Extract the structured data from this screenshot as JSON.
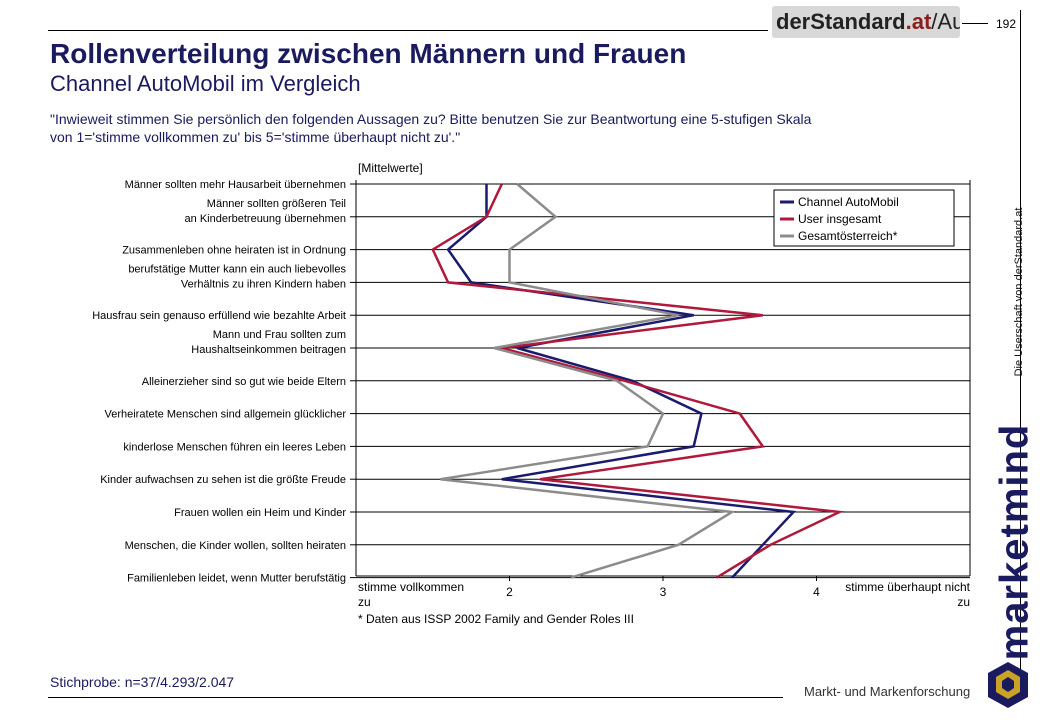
{
  "header": {
    "logo_part1": "derStandard",
    "logo_part2": ".at",
    "logo_part3": "/AutoMobil",
    "page_number": "192",
    "title": "Rollenverteilung zwischen Männern und Frauen",
    "subtitle": "Channel AutoMobil im Vergleich",
    "question_line1": "\"Inwieweit stimmen Sie persönlich den folgenden Aussagen zu? Bitte benutzen Sie zur Beantwortung eine 5-stufigen Skala",
    "question_line2": "von 1='stimme vollkommen zu' bis 5='stimme überhaupt nicht zu'.\""
  },
  "sidebar": {
    "ownership": "Die Userschaft von derStandard.at",
    "brand": "marketmind",
    "tagline": "Markt- und Markenforschung"
  },
  "footer": {
    "sample": "Stichprobe: n=37/4.293/2.047"
  },
  "colors": {
    "title": "#1a1a5e",
    "channel": "#1a1a6e",
    "user": "#b0183c",
    "gesamt": "#8c8c8c",
    "grid": "#000000"
  },
  "chart_data": {
    "type": "line",
    "orientation": "horizontal",
    "value_axis_title": "[Mittelwerte]",
    "x_min_label": "stimme vollkommen zu",
    "x_max_label": "stimme überhaupt nicht zu",
    "footnote": "* Daten aus ISSP 2002 Family and Gender Roles III",
    "xlim": [
      1.0,
      5.0
    ],
    "ticks": [
      2,
      3,
      4
    ],
    "grid": true,
    "legend_position": "top-right",
    "categories": [
      [
        "Männer sollten mehr Hausarbeit übernehmen"
      ],
      [
        "Männer sollten größeren Teil",
        "an Kinderbetreuung übernehmen"
      ],
      [
        "Zusammenleben ohne heiraten ist in Ordnung"
      ],
      [
        "berufstätige Mutter kann ein auch liebevolles",
        "Verhältnis zu ihren Kindern haben"
      ],
      [
        "Hausfrau sein genauso erfüllend wie bezahlte Arbeit"
      ],
      [
        "Mann und Frau sollten zum",
        "Haushaltseinkommen beitragen"
      ],
      [
        "Alleinerzieher sind so gut wie beide Eltern"
      ],
      [
        "Verheiratete Menschen sind allgemein glücklicher"
      ],
      [
        "kinderlose Menschen führen ein leeres Leben"
      ],
      [
        "Kinder aufwachsen zu sehen ist die größte Freude"
      ],
      [
        "Frauen wollen ein Heim und Kinder"
      ],
      [
        "Menschen, die Kinder wollen, sollten heiraten"
      ],
      [
        "Familienleben leidet, wenn Mutter berufstätig"
      ]
    ],
    "series": [
      {
        "name": "Channel AutoMobil",
        "color": "#1a1a6e",
        "values": [
          1.85,
          1.85,
          1.6,
          1.75,
          3.2,
          2.05,
          2.8,
          3.25,
          3.2,
          1.95,
          3.85,
          3.65,
          3.45
        ]
      },
      {
        "name": "User insgesamt",
        "color": "#b0183c",
        "values": [
          1.95,
          1.85,
          1.5,
          1.6,
          3.65,
          1.95,
          2.75,
          3.5,
          3.65,
          2.2,
          4.15,
          3.7,
          3.35
        ]
      },
      {
        "name": "Gesamtösterreich*",
        "color": "#8c8c8c",
        "values": [
          2.05,
          2.3,
          2.0,
          2.0,
          3.1,
          1.9,
          2.7,
          3.0,
          2.9,
          1.55,
          3.45,
          3.1,
          2.4
        ]
      }
    ]
  }
}
